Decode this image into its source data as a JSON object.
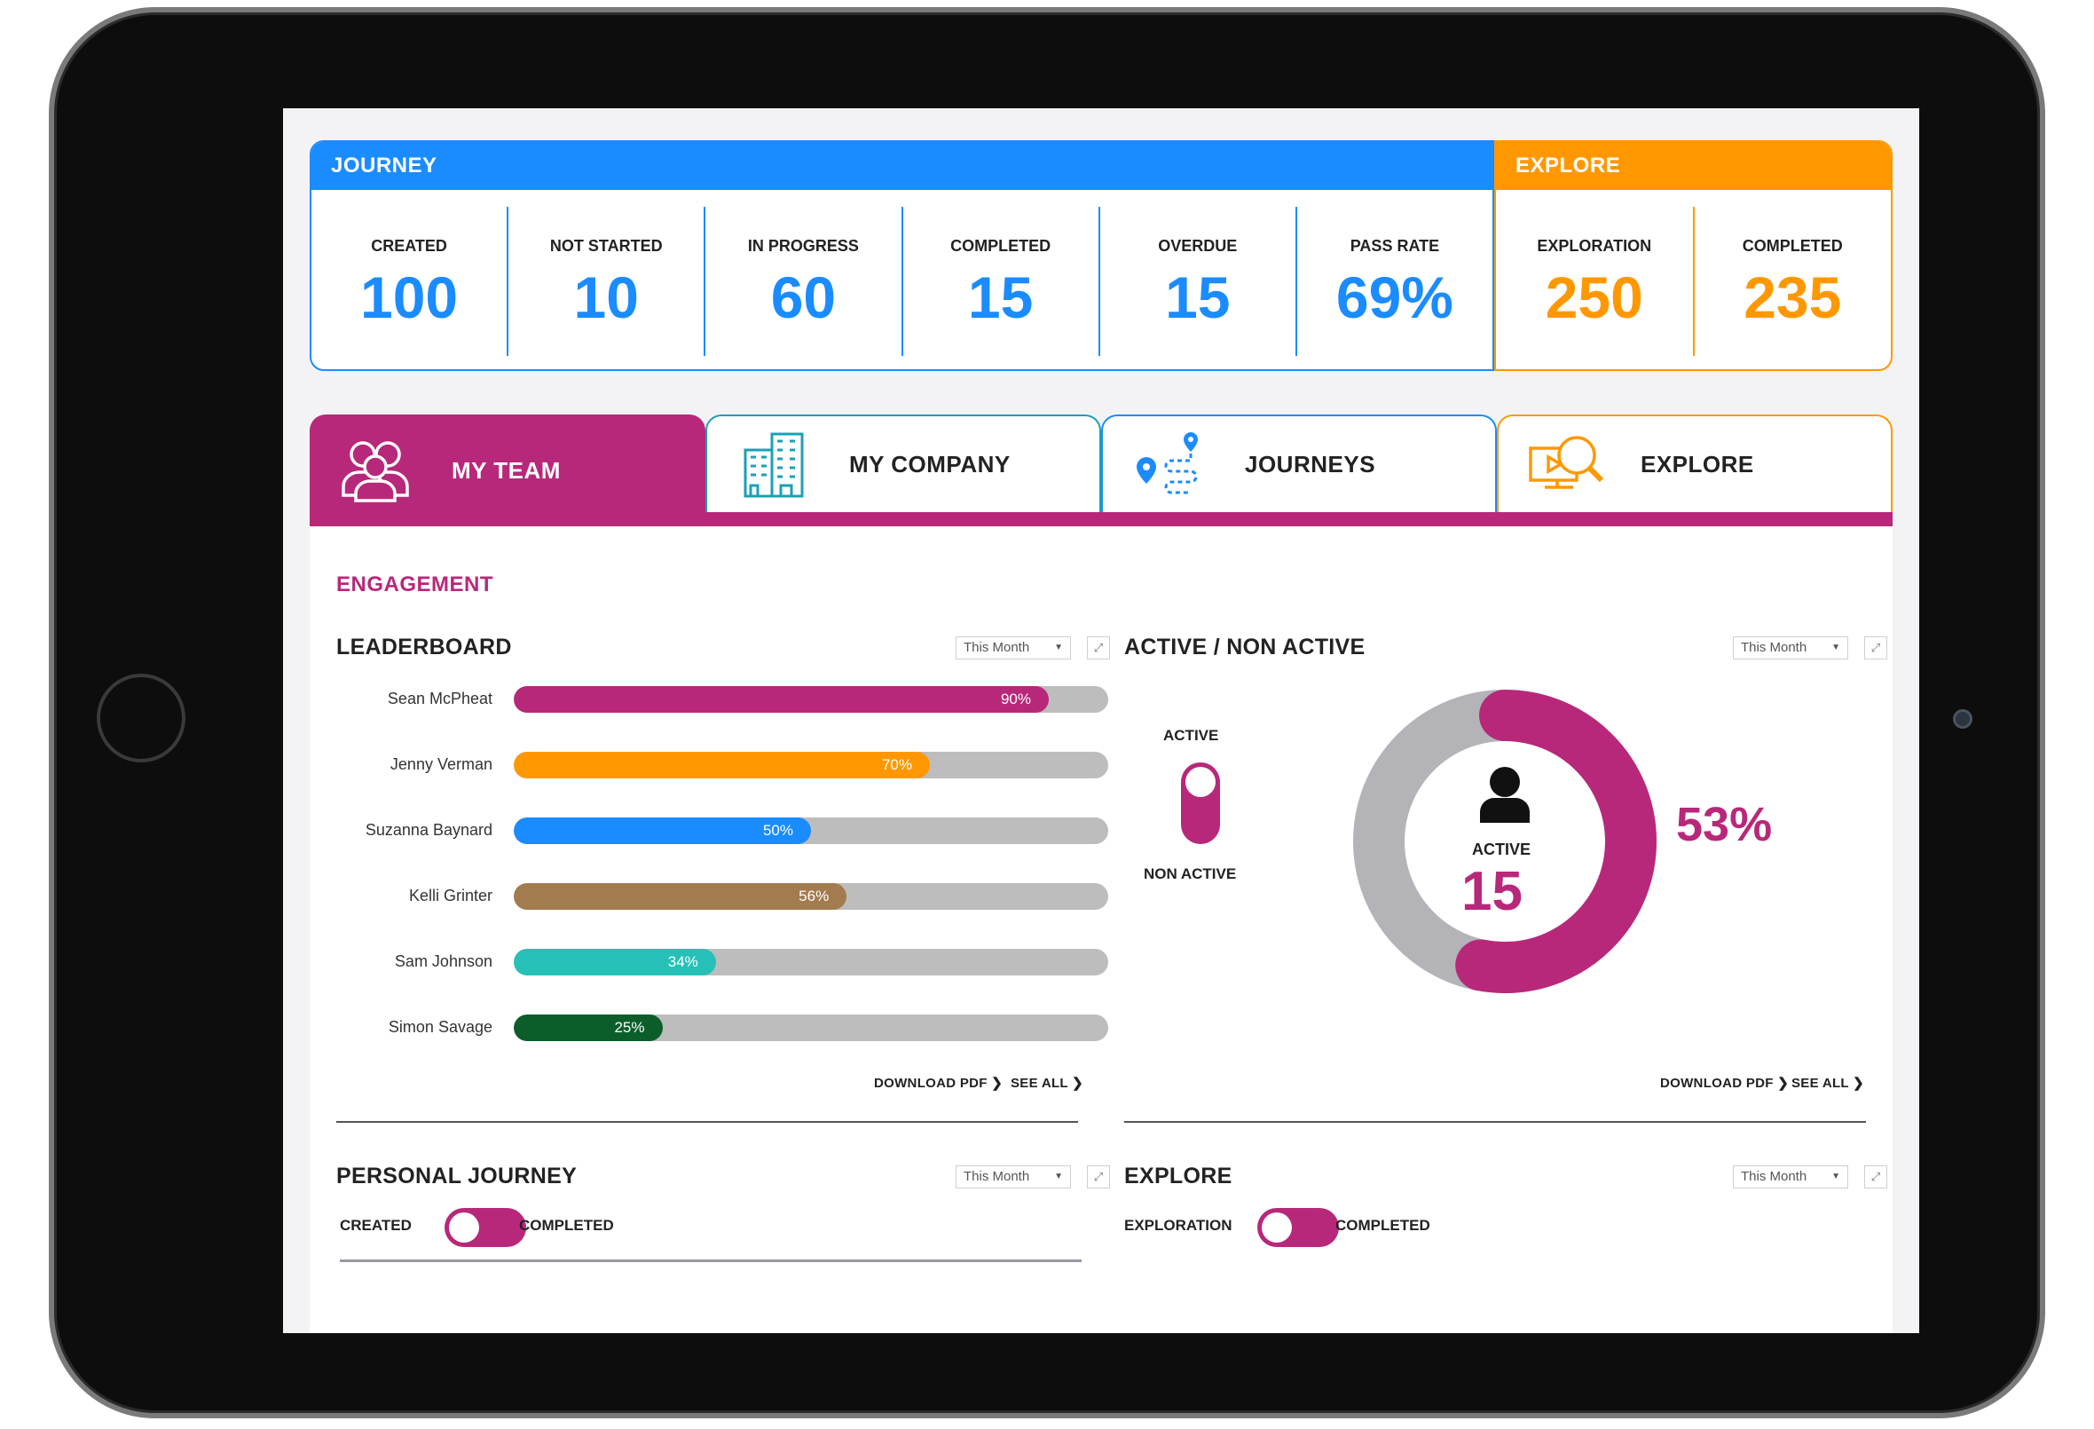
{
  "journey_stats": {
    "header": "JOURNEY",
    "items": [
      {
        "label": "CREATED",
        "value": "100"
      },
      {
        "label": "NOT STARTED",
        "value": "10"
      },
      {
        "label": "IN PROGRESS",
        "value": "60"
      },
      {
        "label": "COMPLETED",
        "value": "15"
      },
      {
        "label": "OVERDUE",
        "value": "15"
      },
      {
        "label": "PASS RATE",
        "value": "69%"
      }
    ]
  },
  "explore_stats": {
    "header": "EXPLORE",
    "items": [
      {
        "label": "EXPLORATION",
        "value": "250"
      },
      {
        "label": "COMPLETED",
        "value": "235"
      }
    ]
  },
  "tabs": [
    {
      "label": "MY TEAM",
      "icon": "team-icon",
      "active": true
    },
    {
      "label": "MY COMPANY",
      "icon": "building-icon"
    },
    {
      "label": "JOURNEYS",
      "icon": "route-icon"
    },
    {
      "label": "EXPLORE",
      "icon": "explore-search-icon"
    }
  ],
  "engagement": {
    "title": "ENGAGEMENT",
    "leaderboard": {
      "title": "LEADERBOARD",
      "filter": "This Month",
      "rows": [
        {
          "name": "Sean McPheat",
          "percent": 90,
          "label": "90%",
          "color": "#b8287a"
        },
        {
          "name": "Jenny Verman",
          "percent": 70,
          "label": "70%",
          "color": "#ff9800"
        },
        {
          "name": "Suzanna Baynard",
          "percent": 50,
          "label": "50%",
          "color": "#1a8cff"
        },
        {
          "name": "Kelli Grinter",
          "percent": 56,
          "label": "56%",
          "color": "#a27b4f"
        },
        {
          "name": "Sam Johnson",
          "percent": 34,
          "label": "34%",
          "color": "#26c0b8"
        },
        {
          "name": "Simon Savage",
          "percent": 25,
          "label": "25%",
          "color": "#0b5e2a"
        }
      ],
      "download": "DOWNLOAD PDF",
      "see_all": "SEE ALL"
    },
    "active": {
      "title": "ACTIVE / NON ACTIVE",
      "filter": "This Month",
      "toggle_top": "ACTIVE",
      "toggle_bottom": "NON ACTIVE",
      "center_label": "ACTIVE",
      "center_value": "15",
      "percent_label": "53%",
      "active_fraction": 0.53,
      "active_color": "#b8287a",
      "inactive_color": "#b3b3b8",
      "download": "DOWNLOAD PDF",
      "see_all": "SEE ALL"
    },
    "personal_journey": {
      "title": "PERSONAL JOURNEY",
      "filter": "This Month",
      "left": "CREATED",
      "right": "COMPLETED"
    },
    "explore": {
      "title": "EXPLORE",
      "filter": "This Month",
      "left": "EXPLORATION",
      "right": "COMPLETED"
    }
  }
}
